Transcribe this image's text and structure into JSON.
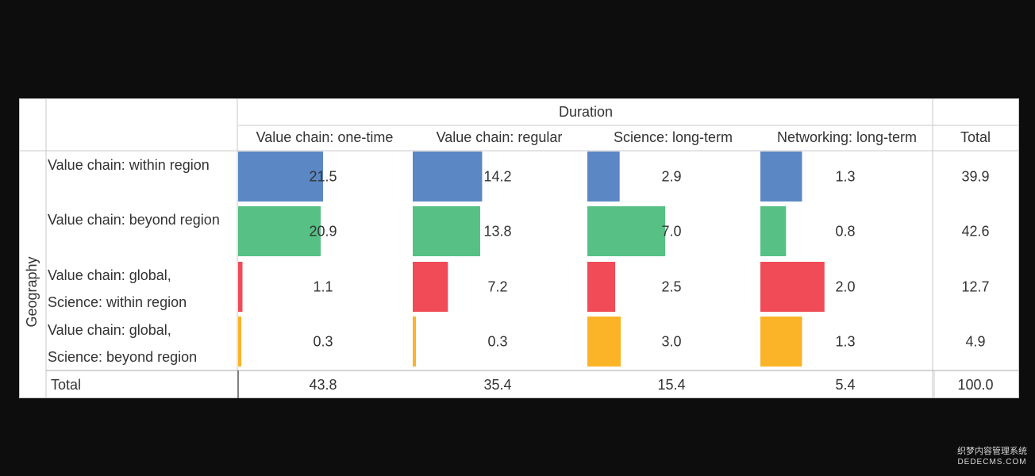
{
  "chart_data": {
    "type": "table",
    "column_group_header": "Duration",
    "row_group_header": "Geography",
    "columns": [
      "Value chain: one-time",
      "Value chain: regular",
      "Science: long-term",
      "Networking: long-term"
    ],
    "total_label": "Total",
    "rows": [
      {
        "label_lines": [
          "Value chain: within region"
        ],
        "color": "#5b87c5",
        "values": [
          21.5,
          14.2,
          2.9,
          1.3
        ],
        "total": 39.9,
        "display": [
          "21.5",
          "14.2",
          "2.9",
          "1.3"
        ],
        "total_display": "39.9"
      },
      {
        "label_lines": [
          "Value chain: beyond region"
        ],
        "color": "#56c085",
        "values": [
          20.9,
          13.8,
          7.0,
          0.8
        ],
        "total": 42.6,
        "display": [
          "20.9",
          "13.8",
          "7.0",
          "0.8"
        ],
        "total_display": "42.6"
      },
      {
        "label_lines": [
          "Value chain: global,",
          "Science: within region"
        ],
        "color": "#f04b56",
        "values": [
          1.1,
          7.2,
          2.5,
          2.0
        ],
        "total": 12.7,
        "display": [
          "1.1",
          "7.2",
          "2.5",
          "2.0"
        ],
        "total_display": "12.7"
      },
      {
        "label_lines": [
          "Value chain: global,",
          "Science: beyond region"
        ],
        "color": "#fbb327",
        "values": [
          0.3,
          0.3,
          3.0,
          1.3
        ],
        "total": 4.9,
        "display": [
          "0.3",
          "0.3",
          "3.0",
          "1.3"
        ],
        "total_display": "4.9"
      }
    ],
    "column_totals": [
      43.8,
      35.4,
      15.4,
      5.4
    ],
    "column_totals_display": [
      "43.8",
      "35.4",
      "15.4",
      "5.4"
    ],
    "grand_total": 100.0,
    "grand_total_display": "100.0",
    "legend": "none"
  },
  "watermark": {
    "line1": "织梦内容管理系统",
    "line2": "DEDECMS.COM"
  }
}
